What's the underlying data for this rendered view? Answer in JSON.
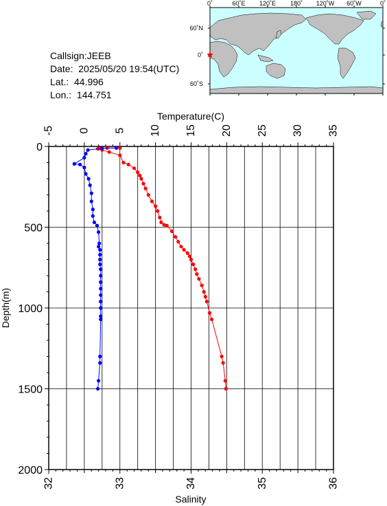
{
  "info": {
    "callsign": "Callsign:JEEB",
    "date": "Date:  2025/05/20 19:54(UTC)",
    "lat": "Lat.:  44.996",
    "lon": "Lon.:  144.751"
  },
  "map": {
    "top_labels": [
      "0˚",
      "60˚E",
      "120˚E",
      "180˚",
      "120˚W",
      "60˚W",
      "0˚"
    ],
    "right_labels": [
      "60˚N",
      "0˚",
      "60˚S"
    ],
    "ocean_color": "#ccffff",
    "land_color": "#c0c0c0",
    "marker_color": "#ff0000"
  },
  "chart_data": {
    "type": "line",
    "temperature_axis": {
      "label": "Temperature(C)",
      "range": [
        -5,
        35
      ],
      "ticks": [
        "-5",
        "0",
        "5",
        "10",
        "15",
        "20",
        "25",
        "30",
        "35"
      ]
    },
    "salinity_axis": {
      "label": "Salinity",
      "range": [
        32,
        36
      ],
      "ticks": [
        "32",
        "33",
        "34",
        "35",
        "36"
      ]
    },
    "depth_axis": {
      "label": "Depth(m)",
      "range": [
        0,
        2000
      ],
      "ticks": [
        "0",
        "500",
        "1000",
        "1500",
        "2000"
      ]
    },
    "grid": true,
    "series": [
      {
        "variable": "temperature",
        "color": "#ff0000",
        "points": [
          [
            5.0,
            10
          ],
          [
            3.2,
            10
          ],
          [
            2.2,
            12
          ],
          [
            1.9,
            15
          ],
          [
            2.5,
            22
          ],
          [
            3.5,
            35
          ],
          [
            5.0,
            55
          ],
          [
            5.5,
            100
          ],
          [
            6.2,
            112
          ],
          [
            7.0,
            135
          ],
          [
            7.5,
            160
          ],
          [
            7.8,
            180
          ],
          [
            8.0,
            200
          ],
          [
            8.3,
            230
          ],
          [
            8.6,
            260
          ],
          [
            9.0,
            300
          ],
          [
            9.5,
            340
          ],
          [
            10.0,
            370
          ],
          [
            10.3,
            400
          ],
          [
            10.6,
            440
          ],
          [
            10.8,
            470
          ],
          [
            11.2,
            485
          ],
          [
            11.6,
            490
          ],
          [
            12.3,
            525
          ],
          [
            12.8,
            560
          ],
          [
            13.2,
            590
          ],
          [
            13.6,
            620
          ],
          [
            14.0,
            640
          ],
          [
            14.5,
            660
          ],
          [
            14.8,
            680
          ],
          [
            15.0,
            700
          ],
          [
            15.3,
            730
          ],
          [
            15.6,
            760
          ],
          [
            15.8,
            790
          ],
          [
            16.1,
            820
          ],
          [
            16.5,
            860
          ],
          [
            16.8,
            900
          ],
          [
            17.0,
            930
          ],
          [
            17.2,
            960
          ],
          [
            17.6,
            1030
          ],
          [
            17.9,
            1070
          ],
          [
            19.3,
            1300
          ],
          [
            19.5,
            1340
          ],
          [
            19.8,
            1450
          ],
          [
            19.9,
            1500
          ]
        ]
      },
      {
        "variable": "salinity",
        "color": "#0000ff",
        "points": [
          [
            32.95,
            10
          ],
          [
            32.75,
            12
          ],
          [
            32.55,
            22
          ],
          [
            32.52,
            45
          ],
          [
            32.5,
            70
          ],
          [
            32.36,
            108
          ],
          [
            32.44,
            112
          ],
          [
            32.5,
            130
          ],
          [
            32.52,
            170
          ],
          [
            32.56,
            200
          ],
          [
            32.58,
            240
          ],
          [
            32.6,
            290
          ],
          [
            32.6,
            340
          ],
          [
            32.62,
            390
          ],
          [
            32.62,
            430
          ],
          [
            32.64,
            470
          ],
          [
            32.68,
            490
          ],
          [
            32.7,
            530
          ],
          [
            32.71,
            600
          ],
          [
            32.7,
            620
          ],
          [
            32.72,
            640
          ],
          [
            32.72,
            670
          ],
          [
            32.72,
            700
          ],
          [
            32.72,
            730
          ],
          [
            32.73,
            760
          ],
          [
            32.73,
            800
          ],
          [
            32.73,
            840
          ],
          [
            32.73,
            880
          ],
          [
            32.73,
            920
          ],
          [
            32.73,
            960
          ],
          [
            32.73,
            1000
          ],
          [
            32.73,
            1050
          ],
          [
            32.73,
            1070
          ],
          [
            32.72,
            1300
          ],
          [
            32.72,
            1340
          ],
          [
            32.7,
            1450
          ],
          [
            32.69,
            1500
          ]
        ]
      }
    ]
  }
}
